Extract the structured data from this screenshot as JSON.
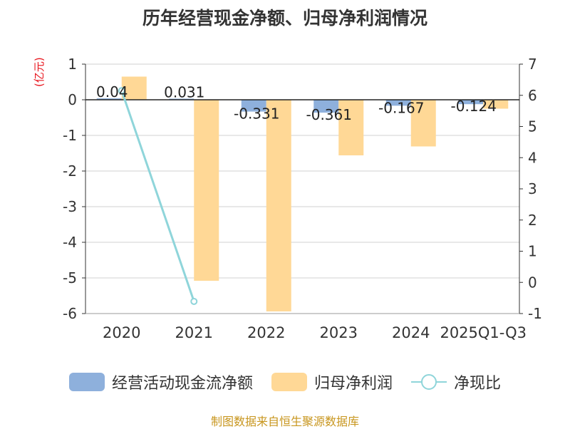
{
  "chart_data": {
    "type": "bar",
    "title": "历年经营现金净额、归母净利润情况",
    "ylabel": "(亿元)",
    "ylim": [
      -6,
      1
    ],
    "y2lim": [
      -1,
      7
    ],
    "yticks": [
      1,
      0,
      -1,
      -2,
      -3,
      -4,
      -5,
      -6
    ],
    "y2ticks": [
      7,
      6,
      5,
      4,
      3,
      2,
      1,
      0,
      -1
    ],
    "categories": [
      "2020",
      "2021",
      "2022",
      "2023",
      "2024",
      "2025Q1-Q3"
    ],
    "series": [
      {
        "name": "经营活动现金流净额",
        "axis": "left",
        "color": "#8eb0dc",
        "values": [
          0.04,
          0.031,
          -0.331,
          -0.361,
          -0.167,
          -0.124
        ],
        "labels": [
          "0.04",
          "0.031",
          "-0.331",
          "-0.361",
          "-0.167",
          "-0.124"
        ]
      },
      {
        "name": "归母净利润",
        "axis": "left",
        "color": "#ffd896",
        "values": [
          0.65,
          -5.08,
          -5.94,
          -1.56,
          -1.31,
          -0.25
        ]
      },
      {
        "name": "净现比",
        "axis": "right",
        "type": "line",
        "color": "#8fd5da",
        "values": [
          6.15,
          -0.61,
          null,
          null,
          null,
          null
        ]
      }
    ],
    "legend_position": "bottom"
  },
  "footer": {
    "source": "制图数据来自恒生聚源数据库"
  }
}
